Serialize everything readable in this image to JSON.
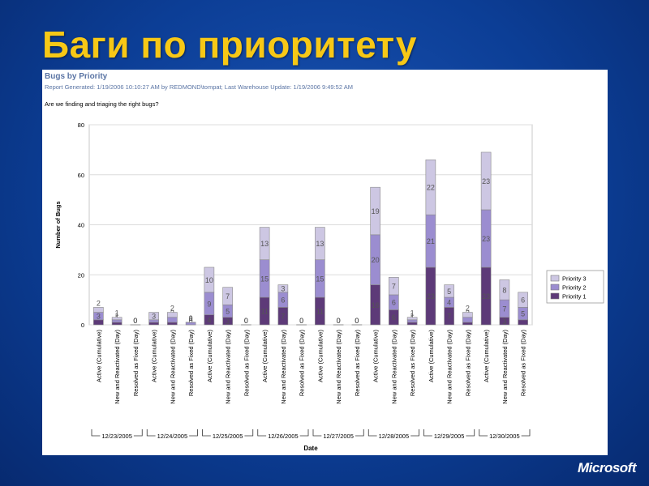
{
  "slide": {
    "title": "Баги по приоритету"
  },
  "report": {
    "title": "Bugs by Priority",
    "meta": "Report Generated: 1/19/2006 10:10:27 AM by REDMOND\\tompat; Last Warehouse Update: 1/19/2006 9:49:52 AM",
    "question": "Are we finding and triaging the right bugs?"
  },
  "logo": {
    "text": "Microsoft"
  },
  "chart_data": {
    "type": "bar",
    "stacked": true,
    "ylabel": "Number of Bugs",
    "xlabel": "Date",
    "ylim": [
      0,
      80
    ],
    "yticks": [
      0,
      20,
      40,
      60,
      80
    ],
    "grid": true,
    "legend_position": "right",
    "categories": [
      "Active (Cumulative)",
      "New and Reactivated (Day)",
      "Resolved as Fixed (Day)",
      "Active (Cumulative)",
      "New and Reactivated (Day)",
      "Resolved as Fixed (Day)",
      "Active (Cumulative)",
      "New and Reactivated (Day)",
      "Resolved as Fixed (Day)",
      "Active (Cumulative)",
      "New and Reactivated (Day)",
      "Resolved as Fixed (Day)",
      "Active (Cumulative)",
      "New and Reactivated (Day)",
      "Resolved as Fixed (Day)",
      "Active (Cumulative)",
      "New and Reactivated (Day)",
      "Resolved as Fixed (Day)",
      "Active (Cumulative)",
      "New and Reactivated (Day)",
      "Resolved as Fixed (Day)",
      "Active (Cumulative)",
      "New and Reactivated (Day)",
      "Resolved as Fixed (Day)"
    ],
    "groups": [
      "12/23/2005",
      "12/24/2005",
      "12/25/2005",
      "12/26/2005",
      "12/27/2005",
      "12/28/2005",
      "12/29/2005",
      "12/30/2005"
    ],
    "series": [
      {
        "name": "Priority 1",
        "color": "#5d3a78",
        "values": [
          2,
          1,
          0,
          1,
          1,
          0,
          4,
          3,
          0,
          11,
          7,
          0,
          11,
          0,
          0,
          16,
          6,
          1,
          23,
          7,
          1,
          23,
          3,
          2
        ]
      },
      {
        "name": "Priority 2",
        "color": "#9b8dd0",
        "values": [
          3,
          1,
          0,
          1,
          2,
          1,
          9,
          5,
          0,
          15,
          6,
          0,
          15,
          0,
          0,
          20,
          6,
          1,
          21,
          4,
          2,
          23,
          7,
          5
        ]
      },
      {
        "name": "Priority 3",
        "color": "#cdc7e3",
        "values": [
          2,
          1,
          0,
          3,
          2,
          0,
          10,
          7,
          0,
          13,
          3,
          0,
          13,
          0,
          0,
          19,
          7,
          1,
          22,
          5,
          2,
          23,
          8,
          6
        ]
      }
    ]
  }
}
